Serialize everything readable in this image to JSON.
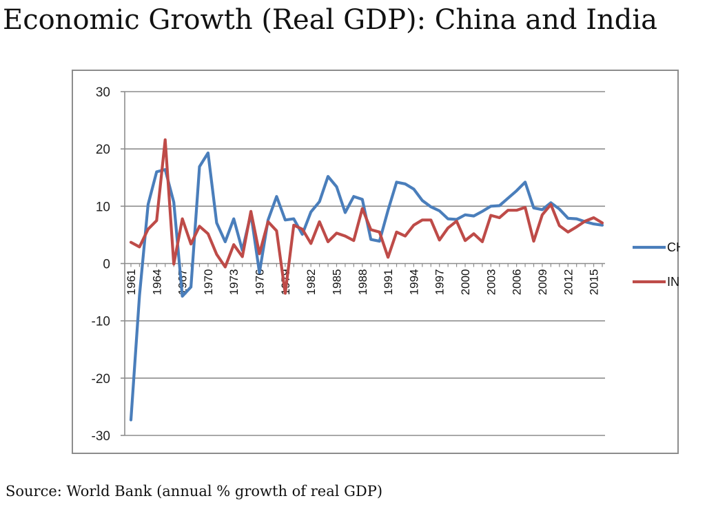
{
  "title": "Economic Growth (Real GDP): China and India",
  "source": "Source: World Bank (annual % growth of real GDP)",
  "chart_data": {
    "type": "line",
    "title": "",
    "xlabel": "",
    "ylabel": "",
    "ylim": [
      -30,
      30
    ],
    "yticks": [
      -30,
      -20,
      -10,
      0,
      10,
      20,
      30
    ],
    "xtick_labels": [
      "1961",
      "1964",
      "1967",
      "1970",
      "1973",
      "1976",
      "1979",
      "1982",
      "1985",
      "1988",
      "1991",
      "1994",
      "1997",
      "2000",
      "2003",
      "2006",
      "2009",
      "2012",
      "2015"
    ],
    "grid": "horizontal",
    "legend_position": "right",
    "x": [
      1961,
      1962,
      1963,
      1964,
      1965,
      1966,
      1967,
      1968,
      1969,
      1970,
      1971,
      1972,
      1973,
      1974,
      1975,
      1976,
      1977,
      1978,
      1979,
      1980,
      1981,
      1982,
      1983,
      1984,
      1985,
      1986,
      1987,
      1988,
      1989,
      1990,
      1991,
      1992,
      1993,
      1994,
      1995,
      1996,
      1997,
      1998,
      1999,
      2000,
      2001,
      2002,
      2003,
      2004,
      2005,
      2006,
      2007,
      2008,
      2009,
      2010,
      2011,
      2012,
      2013,
      2014,
      2015,
      2016
    ],
    "series": [
      {
        "name": "CHN",
        "color": "#4a7ebb",
        "values": [
          -27.3,
          -5.6,
          10.3,
          16.0,
          16.4,
          10.7,
          -5.7,
          -4.1,
          16.9,
          19.3,
          7.1,
          3.8,
          7.8,
          2.3,
          8.7,
          -1.6,
          7.6,
          11.7,
          7.6,
          7.8,
          5.1,
          9.0,
          10.8,
          15.2,
          13.4,
          8.9,
          11.7,
          11.2,
          4.2,
          3.9,
          9.3,
          14.2,
          13.9,
          13.0,
          11.0,
          9.9,
          9.2,
          7.8,
          7.7,
          8.5,
          8.3,
          9.1,
          10.0,
          10.1,
          11.4,
          12.7,
          14.2,
          9.7,
          9.4,
          10.6,
          9.5,
          7.9,
          7.8,
          7.3,
          6.9,
          6.7
        ]
      },
      {
        "name": "IND",
        "color": "#be4b48",
        "values": [
          3.7,
          2.9,
          6.0,
          7.5,
          21.6,
          -0.1,
          7.8,
          3.4,
          6.5,
          5.2,
          1.6,
          -0.6,
          3.3,
          1.2,
          9.1,
          1.7,
          7.3,
          5.7,
          -5.2,
          6.7,
          6.0,
          3.5,
          7.3,
          3.8,
          5.3,
          4.8,
          4.0,
          9.6,
          5.9,
          5.5,
          1.1,
          5.5,
          4.8,
          6.7,
          7.6,
          7.6,
          4.1,
          6.2,
          7.4,
          4.0,
          5.2,
          3.8,
          8.4,
          8.0,
          9.3,
          9.3,
          9.8,
          3.9,
          8.5,
          10.3,
          6.6,
          5.5,
          6.4,
          7.4,
          8.0,
          7.1
        ]
      }
    ]
  }
}
